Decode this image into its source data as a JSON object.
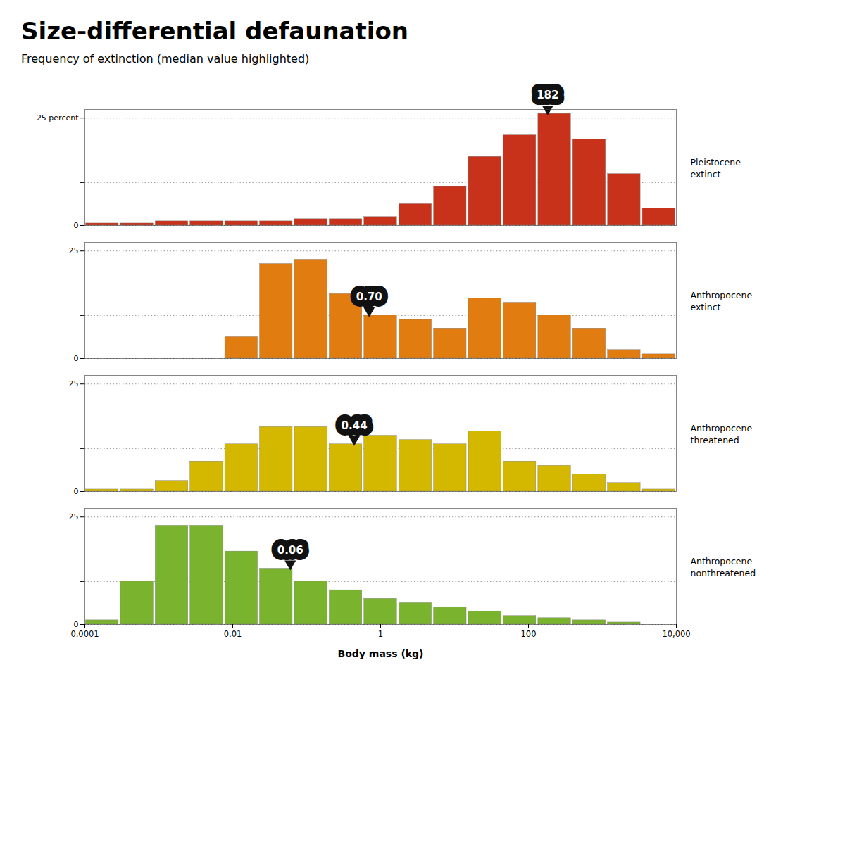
{
  "chart_data": [
    {
      "type": "histogram",
      "title": "Size-differential defaunation",
      "subtitle": "Frequency of extinction (median value highlighted)",
      "bins": [
        0.0001,
        0.00029552,
        0.00087333,
        0.0025809,
        0.007627,
        0.022539,
        0.066608,
        0.19684,
        0.58171,
        1.7191,
        5.0802,
        15.013,
        44.368,
        131.11,
        387.46,
        1145.0,
        3383.9,
        10000
      ],
      "series": [
        {
          "name": "Pleistocene\nextinct",
          "color": "#c8321a",
          "values": [
            0.5,
            0.5,
            1.0,
            1.0,
            1.0,
            1.0,
            1.5,
            1.5,
            2.0,
            5.0,
            9.0,
            16.0,
            21.0,
            26.0,
            20.0,
            12.0,
            4.0
          ],
          "median": {
            "value": 182,
            "label": "182"
          }
        }
      ],
      "xlim": [
        0.0001,
        10000
      ],
      "log": "x",
      "ylim": [
        0,
        27
      ],
      "yticks": [
        0,
        {
          "value": 10,
          "label": null
        },
        {
          "value": 25,
          "label": "25 percent"
        }
      ],
      "grid": true,
      "tick_labels": "y"
    },
    {
      "type": "histogram",
      "bins": [
        0.0001,
        0.00029552,
        0.00087333,
        0.0025809,
        0.007627,
        0.022539,
        0.066608,
        0.19684,
        0.58171,
        1.7191,
        5.0802,
        15.013,
        44.368,
        131.11,
        387.46,
        1145.0,
        3383.9,
        10000
      ],
      "series": [
        {
          "name": "Anthropocene\nextinct",
          "color": "#e07c10",
          "values": [
            0,
            0,
            0,
            0,
            5,
            22,
            23,
            15,
            10,
            9,
            7,
            14,
            13,
            10,
            7,
            2,
            1
          ],
          "median": {
            "value": 0.7,
            "label": "0.70"
          }
        }
      ],
      "xlim": [
        0.0001,
        10000
      ],
      "log": "x",
      "ylim": [
        0,
        27
      ],
      "yticks": [
        0,
        {
          "value": 10,
          "label": null
        },
        25
      ],
      "grid": true,
      "tick_labels": "y"
    },
    {
      "type": "histogram",
      "bins": [
        0.0001,
        0.00029552,
        0.00087333,
        0.0025809,
        0.007627,
        0.022539,
        0.066608,
        0.19684,
        0.58171,
        1.7191,
        5.0802,
        15.013,
        44.368,
        131.11,
        387.46,
        1145.0,
        3383.9,
        10000
      ],
      "series": [
        {
          "name": "Anthropocene\nthreatened",
          "color": "#d4b800",
          "values": [
            0.5,
            0.5,
            2.5,
            7,
            11,
            15,
            15,
            11,
            13,
            12,
            11,
            14,
            7,
            6,
            4,
            2,
            0.5
          ],
          "median": {
            "value": 0.44,
            "label": "0.44"
          }
        }
      ],
      "xlim": [
        0.0001,
        10000
      ],
      "log": "x",
      "ylim": [
        0,
        27
      ],
      "yticks": [
        0,
        {
          "value": 10,
          "label": null
        },
        25
      ],
      "grid": true,
      "tick_labels": "y"
    },
    {
      "type": "histogram",
      "xlabel": "Body mass (kg)",
      "bins": [
        0.0001,
        0.00029552,
        0.00087333,
        0.0025809,
        0.007627,
        0.022539,
        0.066608,
        0.19684,
        0.58171,
        1.7191,
        5.0802,
        15.013,
        44.368,
        131.11,
        387.46,
        1145.0,
        3383.9,
        10000
      ],
      "series": [
        {
          "name": "Anthropocene\nnonthreatened",
          "color": "#7ab32e",
          "values": [
            1,
            10,
            23,
            23,
            17,
            13,
            10,
            8,
            6,
            5,
            4,
            3,
            2,
            1.5,
            1,
            0.5,
            0
          ],
          "median": {
            "value": 0.06,
            "label": "0.06"
          }
        }
      ],
      "xlim": [
        0.0001,
        10000
      ],
      "log": "x",
      "ylim": [
        0,
        27
      ],
      "yticks": [
        0,
        {
          "value": 10,
          "label": null
        },
        25
      ],
      "xticks": [
        0.0001,
        0.01,
        1,
        100,
        {
          "value": 10000,
          "label": "10,000"
        }
      ],
      "grid": true
    }
  ]
}
